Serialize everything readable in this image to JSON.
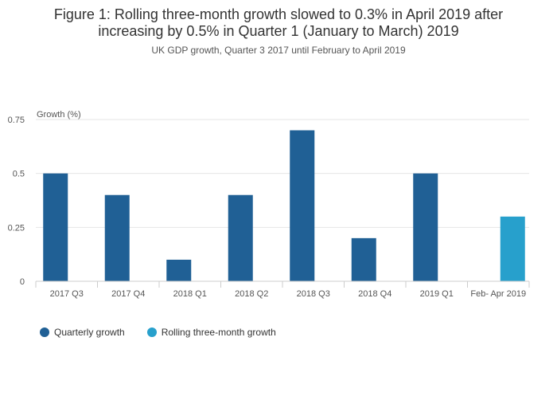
{
  "title": "Figure 1: Rolling three-month growth slowed to 0.3% in April 2019 after increasing by 0.5% in Quarter 1 (January to March) 2019",
  "subtitle": "UK GDP growth, Quarter 3 2017 until February to April 2019",
  "colors": {
    "quarterly": "#206095",
    "rolling": "#27a0cc",
    "grid": "#e6e6e6",
    "axis": "#cccccc"
  },
  "chart_data": {
    "type": "bar",
    "ylabel": "Growth (%)",
    "xlabel": "",
    "ylim": [
      0,
      0.75
    ],
    "yticks": [
      {
        "value": 0,
        "label": "0"
      },
      {
        "value": 0.25,
        "label": "0.25"
      },
      {
        "value": 0.5,
        "label": "0.5"
      },
      {
        "value": 0.75,
        "label": "0.75"
      }
    ],
    "grid": true,
    "legend_position": "bottom-left",
    "categories": [
      "2017 Q3",
      "2017 Q4",
      "2018 Q1",
      "2018 Q2",
      "2018 Q3",
      "2018 Q4",
      "2019 Q1",
      "Feb- Apr 2019"
    ],
    "series": [
      {
        "name": "Quarterly growth",
        "color": "#206095",
        "values": [
          0.5,
          0.4,
          0.1,
          0.4,
          0.7,
          0.2,
          0.5,
          null
        ]
      },
      {
        "name": "Rolling three-month growth",
        "color": "#27a0cc",
        "values": [
          null,
          null,
          null,
          null,
          null,
          null,
          null,
          0.3
        ]
      }
    ]
  }
}
